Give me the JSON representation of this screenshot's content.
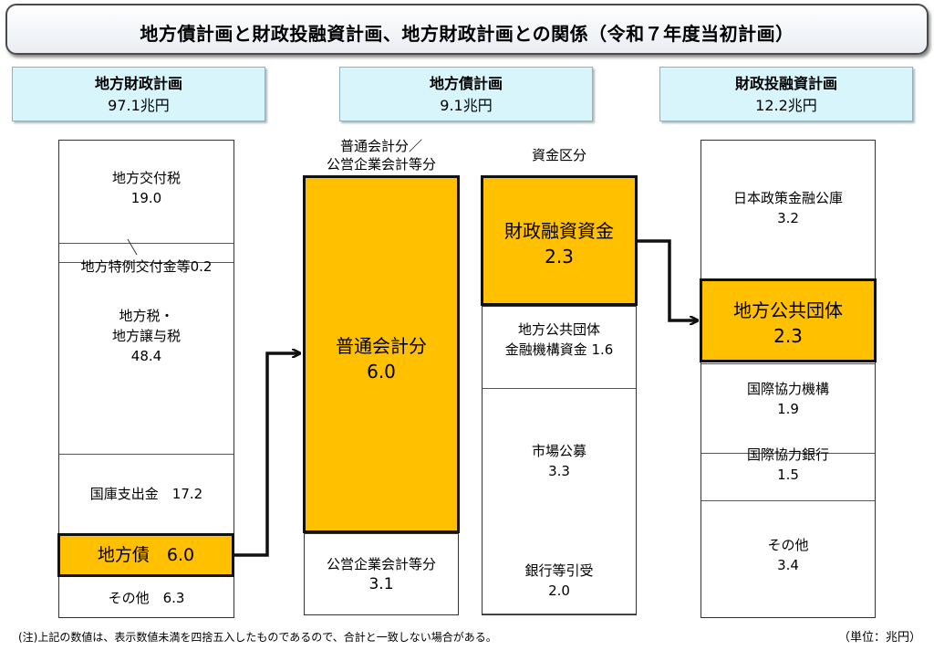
{
  "title": "地方債計画と財政投融資計画、地方財政計画との関係（令和７年度当初計画）",
  "headers": {
    "chiho_zaisei": {
      "name": "地方財政計画",
      "amount": "97.1兆円"
    },
    "chihosai": {
      "name": "地方債計画",
      "amount": "9.1兆円"
    },
    "zaito": {
      "name": "財政投融資計画",
      "amount": "12.2兆円"
    }
  },
  "col1": {
    "kofuzei_label": "地方交付税",
    "kofuzei_value": "19.0",
    "tokurei": "地方特例交付金等0.2",
    "chihozei_line1": "地方税・",
    "chihozei_line2": "地方譲与税",
    "chihozei_value": "48.4",
    "kokko": "国庫支出金　17.2",
    "chihosai": "地方債　6.0",
    "sonota": "その他　6.3"
  },
  "col2": {
    "caption_line1": "普通会計分／",
    "caption_line2": "公営企業会計等分",
    "futsu_label": "普通会計分",
    "futsu_value": "6.0",
    "koei_label": "公営企業会計等分",
    "koei_value": "3.1"
  },
  "col3": {
    "caption": "資金区分",
    "zaisei_label": "財政融資資金",
    "zaisei_value": "2.3",
    "kinyu_line1": "地方公共団体",
    "kinyu_line2": "金融機構資金 1.6",
    "shijo_label": "市場公募",
    "shijo_value": "3.3",
    "ginko_label": "銀行等引受",
    "ginko_value": "2.0"
  },
  "col4": {
    "nihon_label": "日本政策金融公庫",
    "nihon_value": "3.2",
    "chiho_label": "地方公共団体",
    "chiho_value": "2.3",
    "kikou_label": "国際協力機構",
    "kikou_value": "1.9",
    "ginko_label": "国際協力銀行",
    "ginko_value": "1.5",
    "sonota_label": "その他",
    "sonota_value": "3.4"
  },
  "footnote": "(注)上記の数値は、表示数値未満を四捨五入したものであるので、合計と一致しない場合がある。",
  "unit": "（単位：兆円）",
  "colors": {
    "highlight": "#ffc000",
    "header_bg": "#d8f5fb"
  }
}
